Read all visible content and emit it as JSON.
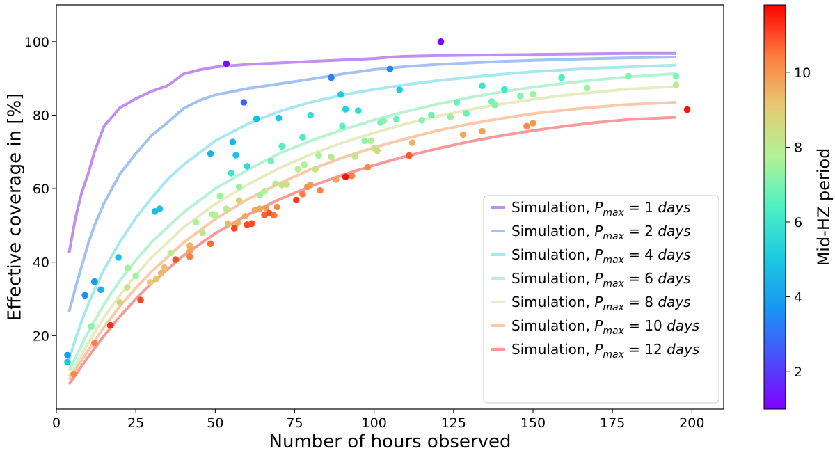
{
  "chart_data": {
    "type": "scatter",
    "xlabel": "Number of hours observed",
    "ylabel": "Effective coverage in [%]",
    "xlim": [
      0,
      210
    ],
    "ylim": [
      0,
      110
    ],
    "xticks": [
      0,
      25,
      50,
      75,
      100,
      125,
      150,
      175,
      200
    ],
    "yticks": [
      20,
      40,
      60,
      80,
      100
    ],
    "grid": false,
    "legend_position": "lower-right",
    "colorbar": {
      "label": "Mid-HZ period",
      "range": [
        1,
        11.8
      ],
      "ticks": [
        2,
        4,
        6,
        8,
        10
      ],
      "colormap": "rainbow"
    },
    "series": [
      {
        "name": "Simulation, P_max = 1 days",
        "legend_prefix": "Simulation, ",
        "legend_var": "P",
        "legend_sub": "max",
        "legend_eq": " = 1 ",
        "legend_unit": "days",
        "color": "#c08ff0",
        "x": [
          4,
          6,
          8,
          10,
          12,
          15,
          20,
          25,
          30,
          35,
          40,
          45,
          50,
          60,
          70,
          80,
          90,
          100,
          105,
          110,
          115,
          120,
          130,
          140,
          150,
          160,
          170,
          180,
          195
        ],
        "y": [
          42.5,
          52,
          59,
          64,
          70,
          77,
          82,
          84.5,
          86.5,
          88,
          91.2,
          92.3,
          93.1,
          93.8,
          94.2,
          94.6,
          95.0,
          95.4,
          95.8,
          96.0,
          96.1,
          96.2,
          96.3,
          96.4,
          96.5,
          96.6,
          96.7,
          96.8,
          96.8
        ]
      },
      {
        "name": "Simulation, P_max = 2 days",
        "legend_prefix": "Simulation, ",
        "legend_var": "P",
        "legend_sub": "max",
        "legend_eq": " = 2 ",
        "legend_unit": "days",
        "color": "#a3c2f2",
        "x": [
          4,
          6,
          8,
          10,
          12,
          15,
          20,
          25,
          30,
          35,
          40,
          45,
          50,
          60,
          70,
          80,
          90,
          100,
          110,
          120,
          130,
          140,
          150,
          160,
          170,
          180,
          195
        ],
        "y": [
          26.5,
          33,
          39,
          45,
          50,
          56,
          64,
          69.5,
          74.5,
          78,
          81.8,
          84,
          85.5,
          87.2,
          88.5,
          89.8,
          91.2,
          92.4,
          93.2,
          93.8,
          94.2,
          94.6,
          94.9,
          95.2,
          95.4,
          95.6,
          95.8
        ]
      },
      {
        "name": "Simulation, P_max = 4 days",
        "legend_prefix": "Simulation, ",
        "legend_var": "P",
        "legend_sub": "max",
        "legend_eq": " = 4 ",
        "legend_unit": "days",
        "color": "#a7e8f0",
        "x": [
          4,
          6,
          8,
          10,
          12,
          15,
          20,
          25,
          30,
          35,
          40,
          50,
          60,
          70,
          80,
          90,
          100,
          110,
          120,
          130,
          140,
          150,
          160,
          170,
          180,
          195
        ],
        "y": [
          13.5,
          19,
          24,
          28.5,
          32.5,
          38,
          45.5,
          52,
          57.5,
          62.5,
          66.5,
          73,
          77.5,
          81,
          83.5,
          85.5,
          87,
          88.3,
          89.4,
          90.3,
          91.1,
          91.8,
          92.3,
          92.8,
          93.1,
          93.6
        ]
      },
      {
        "name": "Simulation, P_max = 6 days",
        "legend_prefix": "Simulation, ",
        "legend_var": "P",
        "legend_sub": "max",
        "legend_eq": " = 6 ",
        "legend_unit": "days",
        "color": "#b8f2d4",
        "x": [
          4,
          6,
          8,
          10,
          15,
          20,
          25,
          30,
          40,
          50,
          60,
          70,
          80,
          90,
          100,
          110,
          120,
          130,
          140,
          150,
          160,
          170,
          180,
          195
        ],
        "y": [
          10.5,
          14,
          17.5,
          21,
          28.5,
          35,
          40.5,
          45.5,
          53.5,
          60,
          65,
          69.5,
          73,
          76,
          78.7,
          81,
          83,
          84.8,
          86.3,
          87.6,
          88.7,
          89.6,
          90.4,
          91.3
        ]
      },
      {
        "name": "Simulation, P_max = 8 days",
        "legend_prefix": "Simulation, ",
        "legend_var": "P",
        "legend_sub": "max",
        "legend_eq": " = 8 ",
        "legend_unit": "days",
        "color": "#e4ecc0",
        "x": [
          4,
          6,
          8,
          10,
          15,
          20,
          25,
          30,
          40,
          50,
          60,
          70,
          80,
          90,
          100,
          110,
          120,
          130,
          140,
          150,
          160,
          170,
          180,
          195
        ],
        "y": [
          9,
          12,
          15,
          18,
          25,
          31,
          36.5,
          41.3,
          49.5,
          55.8,
          61,
          65.5,
          69.3,
          72.5,
          75.2,
          77.6,
          79.7,
          81.5,
          83,
          84.3,
          85.4,
          86.3,
          87.1,
          87.8
        ]
      },
      {
        "name": "Simulation, P_max = 10 days",
        "legend_prefix": "Simulation, ",
        "legend_var": "P",
        "legend_sub": "max",
        "legend_eq": " = 10 ",
        "legend_unit": "days",
        "color": "#fbc8a8",
        "x": [
          4,
          6,
          8,
          10,
          15,
          20,
          25,
          30,
          40,
          50,
          60,
          70,
          80,
          90,
          100,
          110,
          120,
          130,
          140,
          150,
          160,
          170,
          180,
          195
        ],
        "y": [
          8,
          10.7,
          13.4,
          16,
          22.3,
          28,
          33,
          37.5,
          45.3,
          51.7,
          57,
          61.4,
          65.2,
          68.4,
          71.2,
          73.6,
          75.8,
          77.6,
          79.1,
          80.4,
          81.4,
          82.2,
          82.9,
          83.5
        ]
      },
      {
        "name": "Simulation, P_max = 12 days",
        "legend_prefix": "Simulation, ",
        "legend_var": "P",
        "legend_sub": "max",
        "legend_eq": " = 12 ",
        "legend_unit": "days",
        "color": "#f79a9a",
        "x": [
          4,
          6,
          8,
          10,
          15,
          20,
          25,
          30,
          40,
          50,
          60,
          70,
          80,
          90,
          100,
          110,
          120,
          130,
          140,
          150,
          160,
          170,
          180,
          195
        ],
        "y": [
          6.8,
          9.3,
          11.8,
          14.2,
          20,
          25.2,
          30,
          34.3,
          41.8,
          47.8,
          52.8,
          57,
          60.6,
          63.7,
          66.4,
          68.8,
          70.9,
          72.8,
          74.4,
          75.8,
          77,
          78,
          78.8,
          79.4
        ]
      }
    ],
    "scatter_points": [
      [
        53.5,
        94,
        1.2
      ],
      [
        121,
        100,
        1.1
      ],
      [
        198.5,
        81.5,
        11.6
      ],
      [
        59,
        83.5,
        2.8
      ],
      [
        86.5,
        90.2,
        3.3
      ],
      [
        105,
        92.5,
        3.4
      ],
      [
        3.5,
        14.7,
        3.8
      ],
      [
        9,
        31,
        3.6
      ],
      [
        12,
        34.7,
        3.8
      ],
      [
        14,
        32.5,
        4.4
      ],
      [
        31,
        53.8,
        4.7
      ],
      [
        32.5,
        54.5,
        4.8
      ],
      [
        19.5,
        41.3,
        4.9
      ],
      [
        3.5,
        12.8,
        5.0
      ],
      [
        48.5,
        69.5,
        4.4
      ],
      [
        55.5,
        72.7,
        4.5
      ],
      [
        56.5,
        69.1,
        4.9
      ],
      [
        63,
        79,
        4.6
      ],
      [
        70,
        79.2,
        5.0
      ],
      [
        89.5,
        85.6,
        5.1
      ],
      [
        91,
        81.6,
        5.3
      ],
      [
        95,
        81.2,
        5.6
      ],
      [
        108,
        86.9,
        5.2
      ],
      [
        77.5,
        74,
        6.3
      ],
      [
        71,
        71.5,
        6.5
      ],
      [
        67.5,
        67.5,
        6.8
      ],
      [
        60,
        66.1,
        5.6
      ],
      [
        55,
        64.2,
        6.0
      ],
      [
        80,
        80,
        5.8
      ],
      [
        90,
        77,
        6.6
      ],
      [
        102,
        78,
        7.0
      ],
      [
        103,
        78.5,
        7.2
      ],
      [
        107,
        78.9,
        6.8
      ],
      [
        115,
        78.6,
        7.2
      ],
      [
        118,
        80,
        6.8
      ],
      [
        124,
        79.5,
        7.4
      ],
      [
        126,
        83.5,
        6.8
      ],
      [
        129,
        80.5,
        6.8
      ],
      [
        134,
        88,
        6.0
      ],
      [
        137,
        83.7,
        6.9
      ],
      [
        138,
        82.8,
        7.1
      ],
      [
        141,
        87,
        6.1
      ],
      [
        146,
        85.2,
        7.2
      ],
      [
        150,
        85.7,
        7.5
      ],
      [
        159,
        90.2,
        6.4
      ],
      [
        167,
        87.4,
        7.5
      ],
      [
        180,
        90.6,
        7.2
      ],
      [
        195,
        90.6,
        7.1
      ],
      [
        195,
        88.2,
        7.9
      ],
      [
        11,
        22.5,
        7.2
      ],
      [
        22.5,
        38.4,
        7.5
      ],
      [
        25,
        36.3,
        7.5
      ],
      [
        22.3,
        33.1,
        8.3
      ],
      [
        36,
        42.5,
        7.8
      ],
      [
        44,
        50.8,
        7.7
      ],
      [
        49,
        53,
        7.6
      ],
      [
        50,
        52.8,
        7.8
      ],
      [
        51.5,
        58,
        7.5
      ],
      [
        53.5,
        54.5,
        7.9
      ],
      [
        57.5,
        60.5,
        7.4
      ],
      [
        64,
        58.2,
        7.5
      ],
      [
        65.5,
        59.3,
        7.8
      ],
      [
        69,
        61.3,
        8.2
      ],
      [
        71,
        61,
        8.4
      ],
      [
        72.5,
        61.2,
        8.3
      ],
      [
        76,
        65.3,
        7.9
      ],
      [
        78,
        66.5,
        7.7
      ],
      [
        81.5,
        65.3,
        8.4
      ],
      [
        82.5,
        69,
        7.6
      ],
      [
        86.5,
        68.6,
        8.1
      ],
      [
        94,
        68.7,
        8.1
      ],
      [
        97,
        73,
        7.3
      ],
      [
        99,
        73,
        7.6
      ],
      [
        100,
        71,
        8.4
      ],
      [
        101,
        70.3,
        8.5
      ],
      [
        46,
        48,
        8.2
      ],
      [
        57.5,
        56.8,
        8.8
      ],
      [
        20,
        29,
        8.9
      ],
      [
        29.5,
        34.5,
        9.1
      ],
      [
        31.5,
        35.5,
        9.2
      ],
      [
        33,
        37,
        9.4
      ],
      [
        34,
        38.5,
        9.3
      ],
      [
        42,
        44.5,
        9.5
      ],
      [
        42,
        43,
        9.7
      ],
      [
        54,
        50.5,
        9.4
      ],
      [
        57,
        50.6,
        9.5
      ],
      [
        59.5,
        52.5,
        9.6
      ],
      [
        62.5,
        54.2,
        9.6
      ],
      [
        64,
        54.5,
        9.7
      ],
      [
        66,
        54.7,
        9.9
      ],
      [
        69.5,
        55,
        10.2
      ],
      [
        77.5,
        58.5,
        10.4
      ],
      [
        79,
        60.5,
        10.1
      ],
      [
        80,
        61,
        9.9
      ],
      [
        83,
        59.5,
        10.3
      ],
      [
        88,
        62.5,
        9.7
      ],
      [
        93,
        63.5,
        10.3
      ],
      [
        98,
        65.8,
        10.2
      ],
      [
        111,
        69,
        10.8
      ],
      [
        112,
        72.5,
        9.5
      ],
      [
        128,
        74.7,
        9.6
      ],
      [
        134,
        75.6,
        9.8
      ],
      [
        148,
        77,
        10.2
      ],
      [
        150,
        77.8,
        10.0
      ],
      [
        12,
        18,
        10.3
      ],
      [
        17,
        22.8,
        11.3
      ],
      [
        26.5,
        29.7,
        11.0
      ],
      [
        37.5,
        40.7,
        10.9
      ],
      [
        42,
        41.5,
        10.4
      ],
      [
        48.5,
        45,
        10.6
      ],
      [
        56,
        49.2,
        11.0
      ],
      [
        60,
        50.2,
        11.0
      ],
      [
        61.5,
        50.5,
        11.0
      ],
      [
        65.5,
        52.8,
        10.7
      ],
      [
        67,
        53.3,
        10.9
      ],
      [
        68.5,
        52.7,
        10.5
      ],
      [
        75.5,
        56.9,
        11.2
      ],
      [
        91,
        63.2,
        11.6
      ],
      [
        5.5,
        9.5,
        10.3
      ]
    ]
  }
}
